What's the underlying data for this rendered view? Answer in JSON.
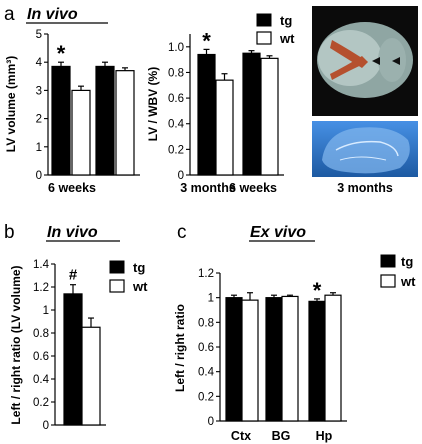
{
  "panel_letters": [
    "a",
    "b",
    "c"
  ],
  "headers": [
    "In vivo",
    "In vivo",
    "Ex vivo"
  ],
  "photo_caption": "3 months",
  "legends": [
    {
      "tg": "tg",
      "wt": "wt"
    },
    {
      "tg": "tg",
      "wt": "wt"
    },
    {
      "tg": "tg",
      "wt": "wt"
    }
  ],
  "colors": {
    "tg": "#000000",
    "wt": "#ffffff",
    "mri_top": "#9fb3b0",
    "mri_bottom": "#2a78d6",
    "tract": "#b5502e"
  },
  "chart_data": [
    {
      "type": "bar",
      "ylabel": "LV volume (mm³)",
      "ylim": [
        0,
        5
      ],
      "yticks": [
        "0",
        "1",
        "2",
        "3",
        "4",
        "5"
      ],
      "categories": [
        "6 weeks",
        ""
      ],
      "series": [
        {
          "name": "tg",
          "values": [
            3.85,
            3.85
          ],
          "errors": [
            0.15,
            0.15
          ]
        },
        {
          "name": "wt",
          "values": [
            3.0,
            3.7
          ],
          "errors": [
            0.15,
            0.1
          ]
        }
      ],
      "annotations": [
        "*",
        ""
      ]
    },
    {
      "type": "bar",
      "ylabel": "LV / WBV (%)",
      "ylim": [
        0,
        1.1
      ],
      "yticks": [
        "0",
        "0.2",
        "0.4",
        "0.6",
        "0.8",
        "1.0"
      ],
      "categories": [
        "3 months",
        "6 weeks"
      ],
      "series": [
        {
          "name": "tg",
          "values": [
            0.94,
            0.95
          ],
          "errors": [
            0.04,
            0.02
          ]
        },
        {
          "name": "wt",
          "values": [
            0.74,
            0.91
          ],
          "errors": [
            0.05,
            0.02
          ]
        }
      ],
      "annotations": [
        "*",
        ""
      ]
    },
    {
      "type": "bar",
      "ylabel": "Left / right ratio (LV volume)",
      "ylim": [
        0,
        1.4
      ],
      "yticks": [
        "0",
        "0.2",
        "0.4",
        "0.6",
        "0.8",
        "1",
        "1.2",
        "1.4"
      ],
      "categories": [
        ""
      ],
      "series": [
        {
          "name": "tg",
          "values": [
            1.14
          ],
          "errors": [
            0.08
          ]
        },
        {
          "name": "wt",
          "values": [
            0.85
          ],
          "errors": [
            0.08
          ]
        }
      ],
      "annotations": [
        "#"
      ]
    },
    {
      "type": "bar",
      "ylabel": "Left / right ratio",
      "ylim": [
        0,
        1.2
      ],
      "yticks": [
        "0",
        "0.2",
        "0.4",
        "0.6",
        "0.8",
        "1",
        "1.2"
      ],
      "categories": [
        "Ctx",
        "BG",
        "Hp"
      ],
      "series": [
        {
          "name": "tg",
          "values": [
            1.0,
            1.0,
            0.97
          ],
          "errors": [
            0.02,
            0.02,
            0.02
          ]
        },
        {
          "name": "wt",
          "values": [
            0.98,
            1.01,
            1.02
          ],
          "errors": [
            0.06,
            0.01,
            0.02
          ]
        }
      ],
      "annotations": [
        "",
        "",
        "*"
      ]
    }
  ]
}
